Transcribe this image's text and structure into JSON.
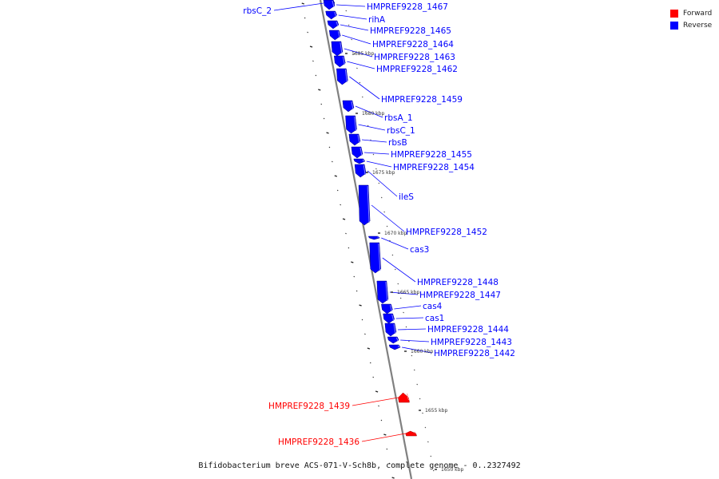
{
  "colors": {
    "forward": "#ff0000",
    "reverse": "#0000ff",
    "backbone": "#808080"
  },
  "legend": [
    {
      "label": "Forward",
      "color": "#ff0000"
    },
    {
      "label": "Reverse",
      "color": "#0000ff"
    }
  ],
  "caption": "Bifidobacterium breve ACS-071-V-Sch8b, complete genome - 0..2327492",
  "kbp_markers": [
    "1685 kbp",
    "1680 kbp",
    "1675 kbp",
    "1670 kbp",
    "1665 kbp",
    "1660 kbp",
    "1655 kbp",
    "1650 kbp"
  ],
  "genes": [
    {
      "name": "rbsC_2",
      "strand": "reverse"
    },
    {
      "name": "HMPREF9228_1467",
      "strand": "reverse"
    },
    {
      "name": "rihA",
      "strand": "reverse"
    },
    {
      "name": "HMPREF9228_1465",
      "strand": "reverse"
    },
    {
      "name": "HMPREF9228_1464",
      "strand": "reverse"
    },
    {
      "name": "HMPREF9228_1463",
      "strand": "reverse"
    },
    {
      "name": "HMPREF9228_1462",
      "strand": "reverse"
    },
    {
      "name": "HMPREF9228_1459",
      "strand": "reverse"
    },
    {
      "name": "rbsA_1",
      "strand": "reverse"
    },
    {
      "name": "rbsC_1",
      "strand": "reverse"
    },
    {
      "name": "rbsB",
      "strand": "reverse"
    },
    {
      "name": "HMPREF9228_1455",
      "strand": "reverse"
    },
    {
      "name": "HMPREF9228_1454",
      "strand": "reverse"
    },
    {
      "name": "ileS",
      "strand": "reverse"
    },
    {
      "name": "HMPREF9228_1452",
      "strand": "reverse"
    },
    {
      "name": "cas3",
      "strand": "reverse"
    },
    {
      "name": "HMPREF9228_1448",
      "strand": "reverse"
    },
    {
      "name": "HMPREF9228_1447",
      "strand": "reverse"
    },
    {
      "name": "cas4",
      "strand": "reverse"
    },
    {
      "name": "cas1",
      "strand": "reverse"
    },
    {
      "name": "HMPREF9228_1444",
      "strand": "reverse"
    },
    {
      "name": "HMPREF9228_1443",
      "strand": "reverse"
    },
    {
      "name": "HMPREF9228_1442",
      "strand": "reverse"
    },
    {
      "name": "HMPREF9228_1439",
      "strand": "forward"
    },
    {
      "name": "HMPREF9228_1436",
      "strand": "forward"
    }
  ]
}
